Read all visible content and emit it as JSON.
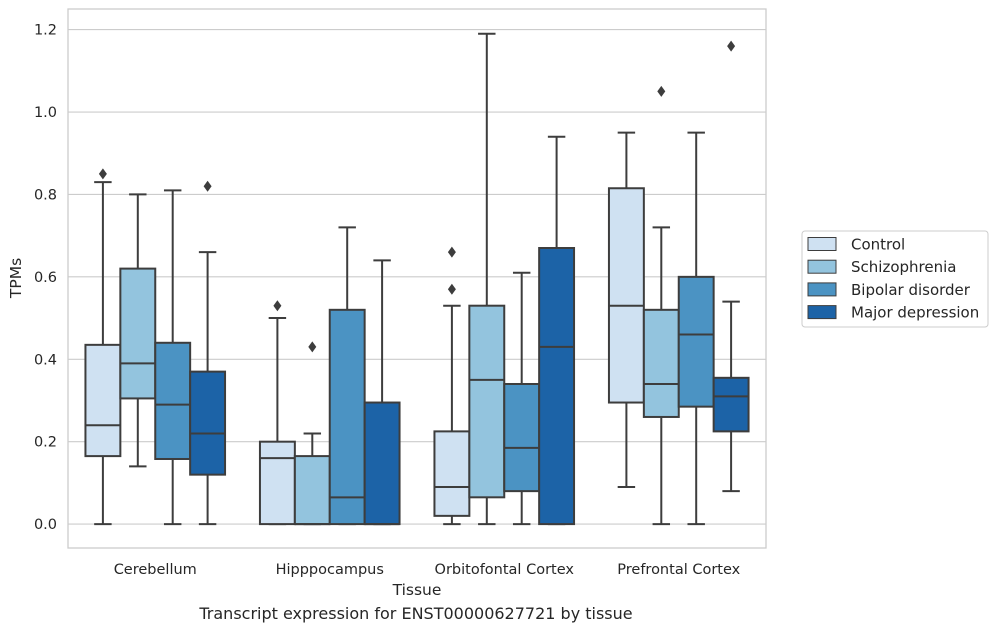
{
  "caption": "Transcript expression for ENST00000627721 by tissue",
  "chart_data": {
    "type": "boxplot",
    "xlabel": "Tissue",
    "ylabel": "TPMs",
    "ylim": [
      -0.058,
      1.25
    ],
    "yticks": [
      "0.0",
      "0.2",
      "0.4",
      "0.6",
      "0.8",
      "1.0",
      "1.2"
    ],
    "grid": "horizontal",
    "legend_position": "right",
    "categories": [
      "Cerebellum",
      "Hipppocampus",
      "Orbitofontal Cortex",
      "Prefrontal Cortex"
    ],
    "series": [
      {
        "name": "Control",
        "color": "#cfe1f2",
        "boxes": [
          {
            "whislo": 0.0,
            "q1": 0.165,
            "med": 0.24,
            "q3": 0.435,
            "whishi": 0.83,
            "fliers": [
              0.85
            ]
          },
          {
            "whislo": 0.0,
            "q1": 0.0,
            "med": 0.16,
            "q3": 0.2,
            "whishi": 0.5,
            "fliers": [
              0.53
            ]
          },
          {
            "whislo": 0.0,
            "q1": 0.02,
            "med": 0.09,
            "q3": 0.225,
            "whishi": 0.53,
            "fliers": [
              0.57,
              0.66
            ]
          },
          {
            "whislo": 0.09,
            "q1": 0.295,
            "med": 0.53,
            "q3": 0.815,
            "whishi": 0.95,
            "fliers": []
          }
        ]
      },
      {
        "name": "Schizophrenia",
        "color": "#93c4de",
        "boxes": [
          {
            "whislo": 0.14,
            "q1": 0.305,
            "med": 0.39,
            "q3": 0.62,
            "whishi": 0.8,
            "fliers": []
          },
          {
            "whislo": 0.0,
            "q1": 0.0,
            "med": 0.0,
            "q3": 0.165,
            "whishi": 0.22,
            "fliers": [
              0.43
            ]
          },
          {
            "whislo": 0.0,
            "q1": 0.065,
            "med": 0.35,
            "q3": 0.53,
            "whishi": 1.19,
            "fliers": []
          },
          {
            "whislo": 0.0,
            "q1": 0.26,
            "med": 0.34,
            "q3": 0.52,
            "whishi": 0.72,
            "fliers": [
              1.05
            ]
          }
        ]
      },
      {
        "name": "Bipolar disorder",
        "color": "#4b93c3",
        "boxes": [
          {
            "whislo": 0.0,
            "q1": 0.158,
            "med": 0.29,
            "q3": 0.44,
            "whishi": 0.81,
            "fliers": []
          },
          {
            "whislo": 0.0,
            "q1": 0.0,
            "med": 0.065,
            "q3": 0.52,
            "whishi": 0.72,
            "fliers": []
          },
          {
            "whislo": 0.0,
            "q1": 0.08,
            "med": 0.185,
            "q3": 0.34,
            "whishi": 0.61,
            "fliers": []
          },
          {
            "whislo": 0.0,
            "q1": 0.285,
            "med": 0.46,
            "q3": 0.6,
            "whishi": 0.95,
            "fliers": []
          }
        ]
      },
      {
        "name": "Major depression",
        "color": "#1c63a7",
        "boxes": [
          {
            "whislo": 0.0,
            "q1": 0.12,
            "med": 0.22,
            "q3": 0.37,
            "whishi": 0.66,
            "fliers": [
              0.82
            ]
          },
          {
            "whislo": 0.0,
            "q1": 0.0,
            "med": 0.0,
            "q3": 0.295,
            "whishi": 0.64,
            "fliers": []
          },
          {
            "whislo": 0.0,
            "q1": 0.0,
            "med": 0.43,
            "q3": 0.67,
            "whishi": 0.94,
            "fliers": []
          },
          {
            "whislo": 0.08,
            "q1": 0.225,
            "med": 0.31,
            "q3": 0.355,
            "whishi": 0.54,
            "fliers": [
              1.16
            ]
          }
        ]
      }
    ]
  }
}
